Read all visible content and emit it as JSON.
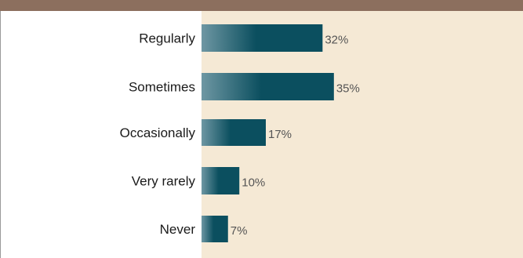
{
  "colors": {
    "top_band": "#8c6f5e",
    "plot_background": "#f5e9d5",
    "bar_dark": "#0b4f5f",
    "bar_light": "#6e97a3"
  },
  "chart_data": {
    "type": "bar",
    "orientation": "horizontal",
    "categories": [
      "Regularly",
      "Sometimes",
      "Occasionally",
      "Very rarely",
      "Never"
    ],
    "values": [
      32,
      35,
      17,
      10,
      7
    ],
    "value_labels": [
      "32%",
      "35%",
      "17%",
      "10%",
      "7%"
    ],
    "unit": "%",
    "title": "",
    "xlabel": "",
    "ylabel": "",
    "xlim": [
      0,
      85
    ],
    "grid": false,
    "legend": "none"
  }
}
